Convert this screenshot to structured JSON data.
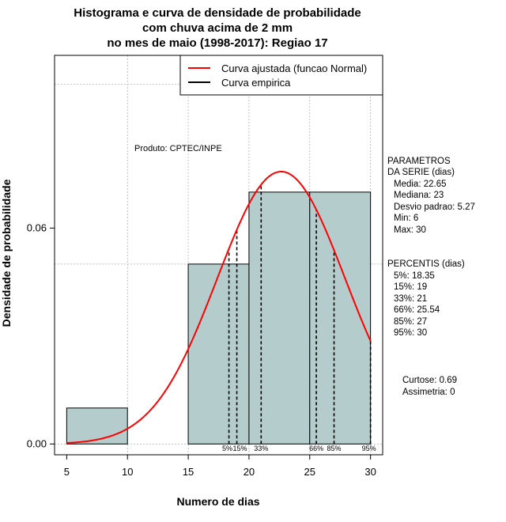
{
  "chart_data": {
    "type": "bar",
    "title_lines": [
      "Histograma e curva de densidade de probabilidade",
      "com chuva acima de 2 mm",
      "no mes de maio (1998-2017): Regiao 17"
    ],
    "xlabel": "Numero de dias",
    "ylabel": "Densidade de probabilidade",
    "xlim": [
      4,
      31
    ],
    "ylim": [
      -0.003,
      0.108
    ],
    "x_ticks": [
      5,
      10,
      15,
      20,
      25,
      30
    ],
    "y_ticks": [
      0.0,
      0.06
    ],
    "y_tick_labels": [
      "0.00",
      "0.06"
    ],
    "grid_x": [
      10,
      15,
      20,
      25,
      30
    ],
    "grid_y": [
      0.0,
      0.05,
      0.1
    ],
    "histogram": {
      "color": "#b5cccc",
      "bins": [
        {
          "from": 5,
          "to": 10,
          "density": 0.01
        },
        {
          "from": 10,
          "to": 15,
          "density": 0.0
        },
        {
          "from": 15,
          "to": 20,
          "density": 0.05
        },
        {
          "from": 20,
          "to": 25,
          "density": 0.07
        },
        {
          "from": 25,
          "to": 30,
          "density": 0.07
        }
      ]
    },
    "fitted_curve": {
      "name": "Curva ajustada (funcao Normal)",
      "distribution": "normal",
      "mean": 22.65,
      "sd": 5.27,
      "x_range": [
        5,
        30
      ],
      "color": "#ff0000"
    },
    "empirical_curve": {
      "name": "Curva empirica",
      "color": "#000000"
    },
    "percentile_lines": [
      {
        "label": "5%",
        "x": 18.35
      },
      {
        "label": "15%",
        "x": 19
      },
      {
        "label": "33%",
        "x": 21
      },
      {
        "label": "66%",
        "x": 25.54
      },
      {
        "label": "85%",
        "x": 27
      },
      {
        "label": "95%",
        "x": 30
      }
    ],
    "percentile_axis_labels": [
      "5%",
      "15%",
      "33%",
      "66%",
      "85%",
      "95%"
    ],
    "legend": {
      "position": "top-right",
      "entries": [
        {
          "label": "Curva ajustada (funcao Normal)",
          "color": "#ff0000"
        },
        {
          "label": "Curva empirica",
          "color": "#000000"
        }
      ]
    },
    "annotation": "Produto: CPTEC/INPE"
  },
  "stats_panel": {
    "parametros_title_1": "PARAMETROS",
    "parametros_title_2": "DA SERIE (dias)",
    "media": "Media: 22.65",
    "mediana": "Mediana: 23",
    "desvio": "Desvio padrao: 5.27",
    "min": "Min: 6",
    "max": "Max: 30",
    "percentis_title": "PERCENTIS (dias)",
    "p5": "5%: 18.35",
    "p15": "15%: 19",
    "p33": "33%: 21",
    "p66": "66%: 25.54",
    "p85": "85%: 27",
    "p95": "95%: 30",
    "curtose": "Curtose: 0.69",
    "assimetria": "Assimetria: 0"
  }
}
